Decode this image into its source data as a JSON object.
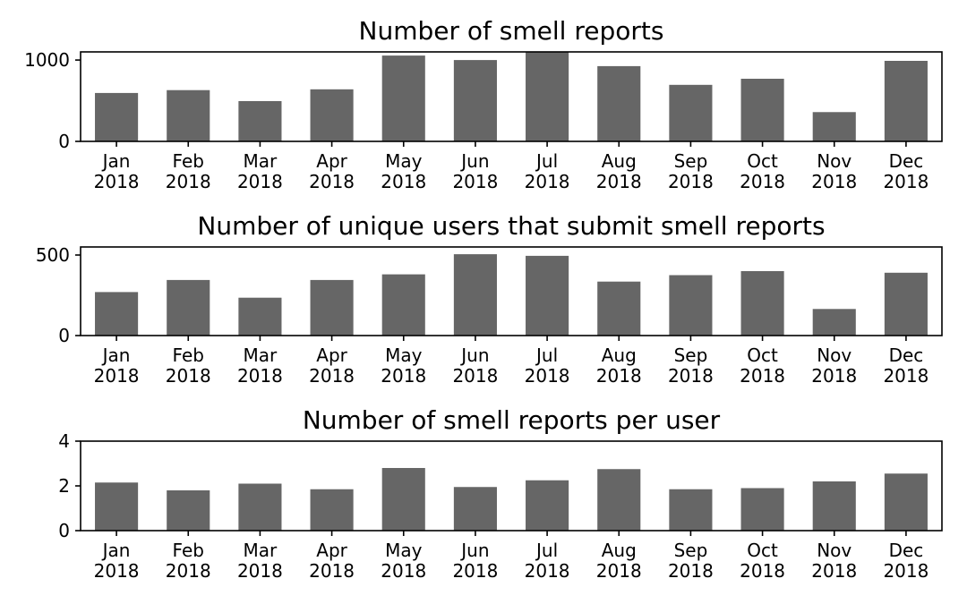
{
  "chart_data": [
    {
      "type": "bar",
      "title": "Number of smell reports",
      "xlabel": "",
      "ylabel": "",
      "categories": [
        [
          "Jan",
          "2018"
        ],
        [
          "Feb",
          "2018"
        ],
        [
          "Mar",
          "2018"
        ],
        [
          "Apr",
          "2018"
        ],
        [
          "May",
          "2018"
        ],
        [
          "Jun",
          "2018"
        ],
        [
          "Jul",
          "2018"
        ],
        [
          "Aug",
          "2018"
        ],
        [
          "Sep",
          "2018"
        ],
        [
          "Oct",
          "2018"
        ],
        [
          "Nov",
          "2018"
        ],
        [
          "Dec",
          "2018"
        ]
      ],
      "values": [
        595,
        630,
        495,
        640,
        1055,
        1000,
        1105,
        925,
        695,
        770,
        360,
        990
      ],
      "ylim": [
        0,
        1100
      ],
      "yticks": [
        0,
        1000
      ],
      "grid": false,
      "bar_color": "#666666"
    },
    {
      "type": "bar",
      "title": "Number of unique users that submit smell reports",
      "xlabel": "",
      "ylabel": "",
      "categories": [
        [
          "Jan",
          "2018"
        ],
        [
          "Feb",
          "2018"
        ],
        [
          "Mar",
          "2018"
        ],
        [
          "Apr",
          "2018"
        ],
        [
          "May",
          "2018"
        ],
        [
          "Jun",
          "2018"
        ],
        [
          "Jul",
          "2018"
        ],
        [
          "Aug",
          "2018"
        ],
        [
          "Sep",
          "2018"
        ],
        [
          "Oct",
          "2018"
        ],
        [
          "Nov",
          "2018"
        ],
        [
          "Dec",
          "2018"
        ]
      ],
      "values": [
        270,
        345,
        235,
        345,
        380,
        505,
        495,
        335,
        375,
        400,
        165,
        390
      ],
      "ylim": [
        0,
        550
      ],
      "yticks": [
        0,
        500
      ],
      "grid": false,
      "bar_color": "#666666"
    },
    {
      "type": "bar",
      "title": "Number of smell reports per user",
      "xlabel": "",
      "ylabel": "",
      "categories": [
        [
          "Jan",
          "2018"
        ],
        [
          "Feb",
          "2018"
        ],
        [
          "Mar",
          "2018"
        ],
        [
          "Apr",
          "2018"
        ],
        [
          "May",
          "2018"
        ],
        [
          "Jun",
          "2018"
        ],
        [
          "Jul",
          "2018"
        ],
        [
          "Aug",
          "2018"
        ],
        [
          "Sep",
          "2018"
        ],
        [
          "Oct",
          "2018"
        ],
        [
          "Nov",
          "2018"
        ],
        [
          "Dec",
          "2018"
        ]
      ],
      "values": [
        2.15,
        1.8,
        2.1,
        1.85,
        2.8,
        1.95,
        2.25,
        2.75,
        1.85,
        1.9,
        2.2,
        2.55
      ],
      "ylim": [
        0,
        4
      ],
      "yticks": [
        0,
        2,
        4
      ],
      "grid": false,
      "bar_color": "#666666"
    }
  ]
}
